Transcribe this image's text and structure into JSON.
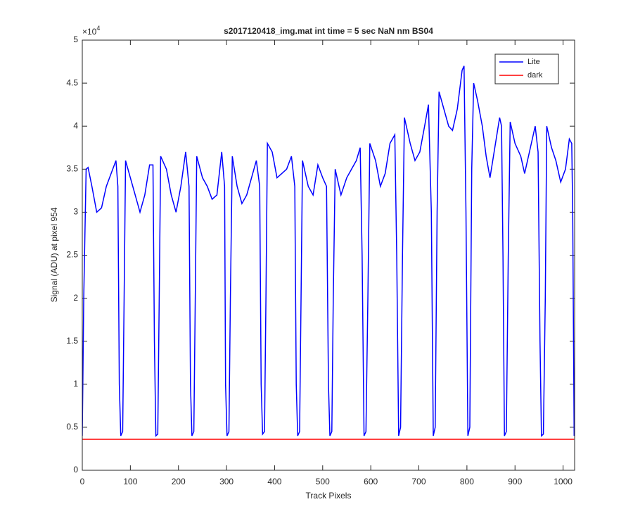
{
  "chart_data": {
    "type": "line",
    "title": "s2017120418_img.mat int time = 5 sec  NaN nm BS04",
    "x_label": "Track Pixels",
    "y_label": "Signal (ADU) at pixel 954",
    "y_multiplier": {
      "base": "×10",
      "exponent": "4"
    },
    "xlim": [
      0,
      1024
    ],
    "ylim": [
      0,
      50000
    ],
    "xticks": [
      0,
      100,
      200,
      300,
      400,
      500,
      600,
      700,
      800,
      900,
      1000
    ],
    "yticks": [
      {
        "value": 0,
        "label": "0"
      },
      {
        "value": 5000,
        "label": "0.5"
      },
      {
        "value": 10000,
        "label": "1"
      },
      {
        "value": 15000,
        "label": "1.5"
      },
      {
        "value": 20000,
        "label": "2"
      },
      {
        "value": 25000,
        "label": "2.5"
      },
      {
        "value": 30000,
        "label": "3"
      },
      {
        "value": 35000,
        "label": "3.5"
      },
      {
        "value": 40000,
        "label": "4"
      },
      {
        "value": 45000,
        "label": "4.5"
      },
      {
        "value": 50000,
        "label": "5"
      }
    ],
    "grid": false,
    "legend": "top-right",
    "series": [
      {
        "name": "Lite",
        "color": "#0000ff",
        "x": [
          0,
          3,
          8,
          12,
          20,
          30,
          40,
          50,
          60,
          70,
          74,
          77,
          80,
          84,
          87,
          90,
          100,
          110,
          120,
          130,
          140,
          147,
          150,
          153,
          157,
          160,
          163,
          175,
          185,
          195,
          205,
          215,
          222,
          225,
          228,
          232,
          235,
          238,
          250,
          260,
          270,
          280,
          290,
          296,
          298,
          301,
          305,
          308,
          312,
          322,
          332,
          342,
          352,
          362,
          369,
          372,
          375,
          379,
          382,
          385,
          395,
          405,
          415,
          425,
          435,
          442,
          445,
          448,
          452,
          455,
          458,
          470,
          480,
          490,
          500,
          508,
          512,
          515,
          519,
          522,
          526,
          538,
          550,
          560,
          570,
          578,
          582,
          586,
          590,
          594,
          598,
          610,
          620,
          630,
          640,
          650,
          654,
          658,
          662,
          666,
          670,
          682,
          692,
          702,
          712,
          720,
          726,
          730,
          734,
          738,
          742,
          752,
          762,
          770,
          780,
          790,
          794,
          798,
          802,
          806,
          810,
          814,
          822,
          832,
          840,
          848,
          858,
          868,
          872,
          875,
          878,
          882,
          886,
          890,
          900,
          912,
          920,
          932,
          942,
          948,
          952,
          955,
          959,
          963,
          966,
          976,
          985,
          995,
          1005,
          1013,
          1018,
          1020,
          1023
        ],
        "values": [
          4000,
          20000,
          35000,
          35200,
          33000,
          30000,
          30500,
          33000,
          34500,
          36000,
          33000,
          10000,
          4000,
          4500,
          20000,
          36000,
          34000,
          32000,
          30000,
          32000,
          35500,
          35500,
          15000,
          4000,
          4200,
          20000,
          36500,
          35000,
          32000,
          30000,
          33000,
          37000,
          33000,
          10000,
          4000,
          4500,
          20000,
          36500,
          34000,
          33000,
          31500,
          32000,
          37000,
          33000,
          10000,
          4000,
          4500,
          20000,
          36500,
          33000,
          31000,
          32000,
          34000,
          36000,
          33000,
          10000,
          4200,
          4500,
          20000,
          38000,
          37000,
          34000,
          34500,
          35000,
          36500,
          33000,
          10000,
          4000,
          4500,
          20000,
          36000,
          33000,
          32000,
          35500,
          34000,
          33000,
          10000,
          4000,
          4500,
          20000,
          35000,
          32000,
          34000,
          35000,
          36000,
          37500,
          25000,
          4000,
          4500,
          20000,
          38000,
          36000,
          33000,
          34500,
          38000,
          39000,
          25000,
          4000,
          5000,
          25000,
          41000,
          38000,
          36000,
          37000,
          40000,
          42500,
          30000,
          4000,
          5000,
          30000,
          44000,
          42000,
          40000,
          39500,
          42000,
          46500,
          47000,
          30000,
          4000,
          5000,
          35000,
          45000,
          43000,
          40000,
          36500,
          34000,
          37500,
          41000,
          40000,
          25000,
          4000,
          4500,
          25000,
          40500,
          38000,
          36500,
          34500,
          37500,
          40000,
          37000,
          15000,
          4000,
          4200,
          20000,
          40000,
          37500,
          36000,
          33500,
          35000,
          38500,
          38000,
          30000,
          4000
        ]
      },
      {
        "name": "dark",
        "color": "#ff0000",
        "x": [
          0,
          256,
          512,
          768,
          1023
        ],
        "values": [
          3600,
          3600,
          3600,
          3600,
          3600
        ]
      }
    ]
  }
}
